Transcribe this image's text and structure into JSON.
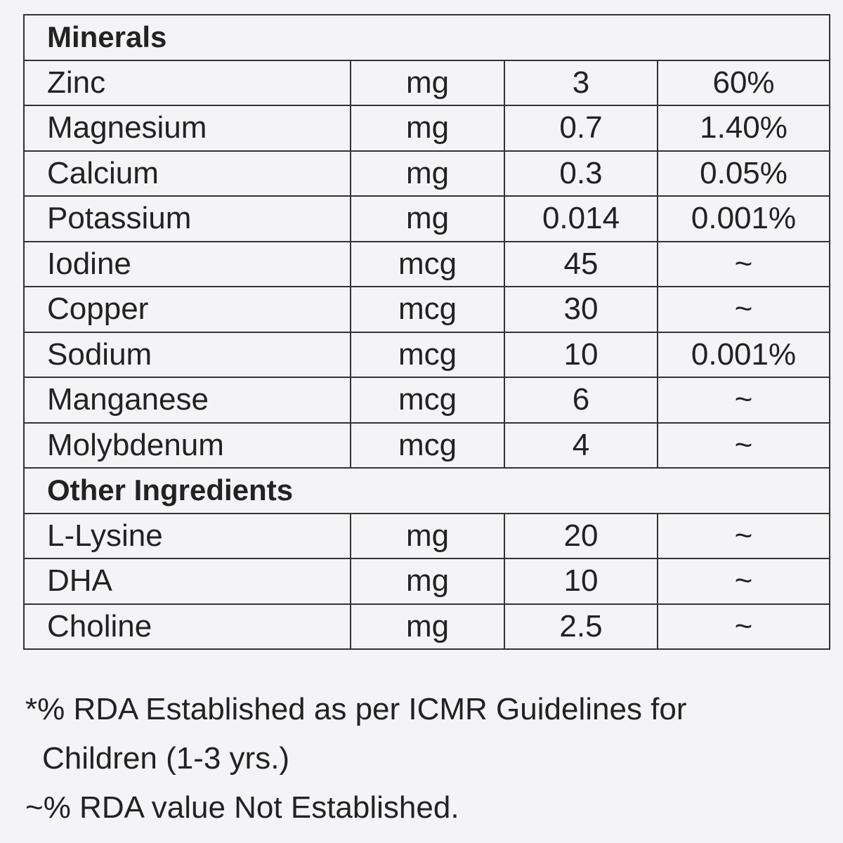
{
  "sections": [
    {
      "title": "Minerals",
      "rows": [
        [
          "Zinc",
          "mg",
          "3",
          "60%"
        ],
        [
          "Magnesium",
          "mg",
          "0.7",
          "1.40%"
        ],
        [
          "Calcium",
          "mg",
          "0.3",
          "0.05%"
        ],
        [
          "Potassium",
          "mg",
          "0.014",
          "0.001%"
        ],
        [
          "Iodine",
          "mcg",
          "45",
          "~"
        ],
        [
          "Copper",
          "mcg",
          "30",
          "~"
        ],
        [
          "Sodium",
          "mcg",
          "10",
          "0.001%"
        ],
        [
          "Manganese",
          "mcg",
          "6",
          "~"
        ],
        [
          "Molybdenum",
          "mcg",
          "4",
          "~"
        ]
      ]
    },
    {
      "title": "Other Ingredients",
      "rows": [
        [
          "L-Lysine",
          "mg",
          "20",
          "~"
        ],
        [
          "DHA",
          "mg",
          "10",
          "~"
        ],
        [
          "Choline",
          "mg",
          "2.5",
          "~"
        ]
      ]
    }
  ],
  "footnotes": [
    "*% RDA Established as per ICMR Guidelines for Children (1-3 yrs.)",
    "~% RDA value Not Established."
  ]
}
